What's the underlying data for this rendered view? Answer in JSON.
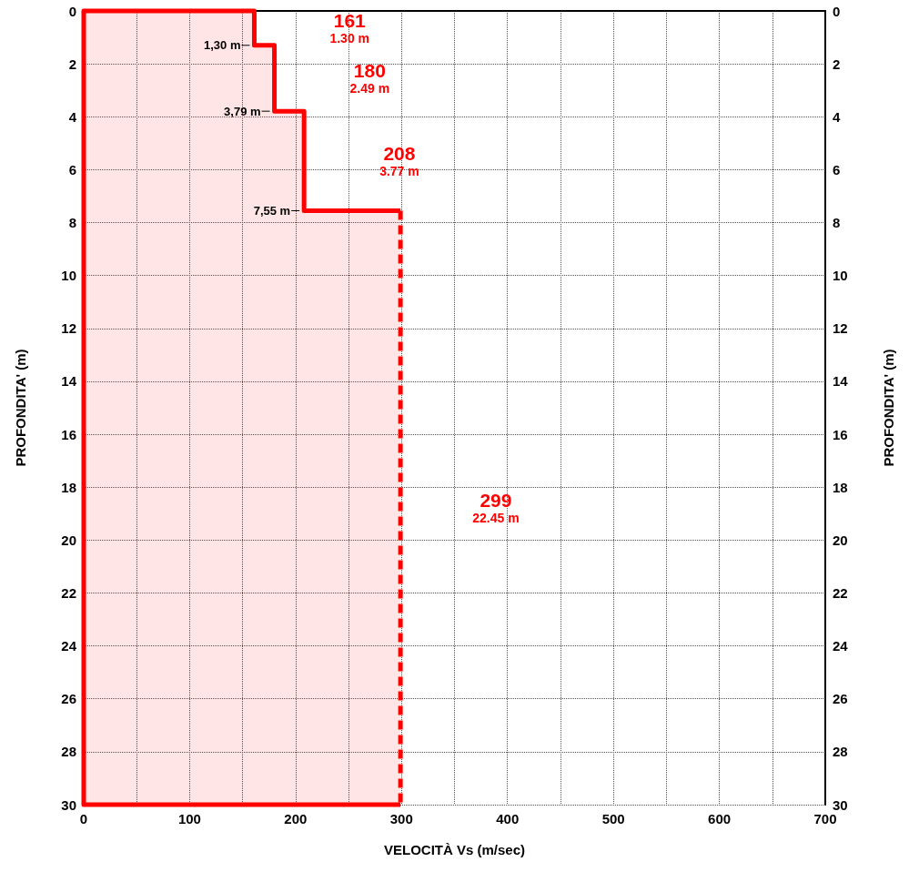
{
  "chart_data": {
    "type": "area",
    "xlabel": "VELOCITÀ Vs (m/sec)",
    "ylabel": "PROFONDITA' (m)",
    "y2label": "PROFONDITA' (m)",
    "series": [
      {
        "color": "#ff0000",
        "x": [
          299,
          0,
          0,
          161,
          161,
          180,
          180,
          208,
          208,
          299
        ],
        "values": [
          30,
          30,
          0,
          0,
          1.3,
          1.3,
          3.79,
          3.79,
          7.55,
          7.55
        ]
      },
      {
        "type": "line",
        "color": "#ff0000",
        "line_style": "dashed",
        "x": [
          299,
          299
        ],
        "values": [
          7.55,
          30
        ]
      }
    ],
    "xlim": [
      0,
      700
    ],
    "xticks": [
      0,
      {
        "value": 50,
        "label": null
      },
      100,
      {
        "value": 150,
        "label": null
      },
      200,
      {
        "value": 250,
        "label": null
      },
      300,
      {
        "value": 350,
        "label": null
      },
      400,
      {
        "value": 450,
        "label": null
      },
      500,
      {
        "value": 550,
        "label": null
      },
      600,
      {
        "value": 650,
        "label": null
      },
      700
    ],
    "ylim": [
      30,
      0
    ],
    "yticks": [
      0,
      2,
      4,
      6,
      8,
      10,
      12,
      14,
      16,
      18,
      20,
      22,
      24,
      26,
      28,
      30
    ],
    "y2lim": [
      30,
      0
    ],
    "y2ticks": [
      0,
      2,
      4,
      6,
      8,
      10,
      12,
      14,
      16,
      18,
      20,
      22,
      24,
      26,
      28,
      30
    ],
    "grid": true,
    "annotations": [
      "161\n1.30 m",
      "180\n2.49 m",
      "208\n3.77 m",
      "299\n22.45 m",
      {
        "text": "1,30 m",
        "x": 161,
        "y": 1.3
      },
      {
        "text": "3,79 m",
        "x": 180,
        "y": 3.79
      },
      {
        "text": "7,55 m",
        "x": 208,
        "y": 7.55
      }
    ]
  }
}
